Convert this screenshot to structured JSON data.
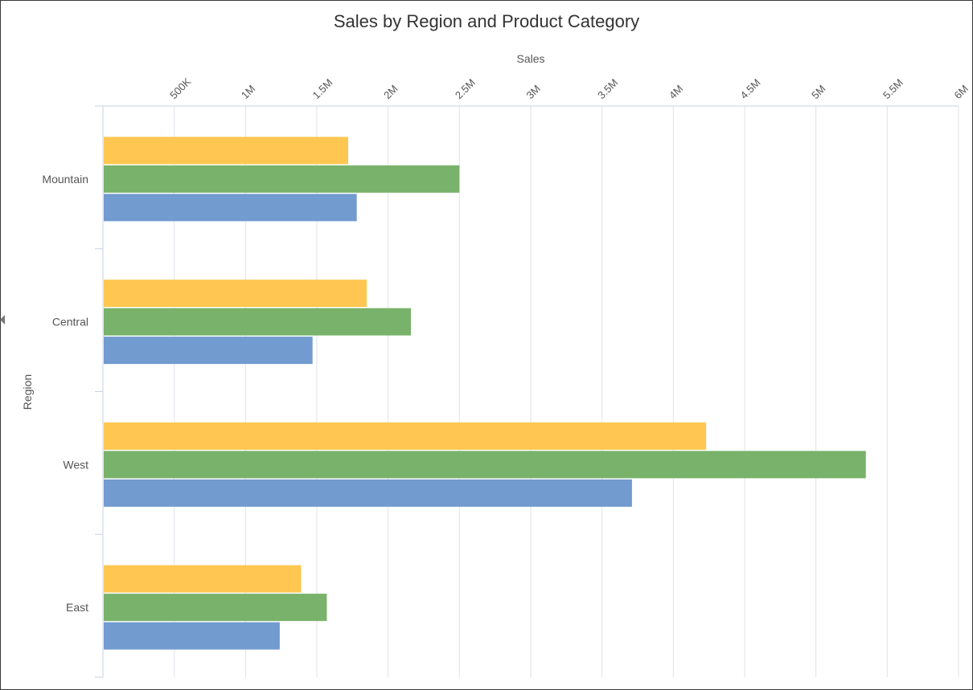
{
  "chart_data": {
    "type": "bar",
    "orientation": "horizontal",
    "title": "Sales by Region and Product Category",
    "xlabel": "Sales",
    "ylabel": "Region",
    "xlim": [
      0,
      6000000
    ],
    "x_ticks": [
      500000,
      1000000,
      1500000,
      2000000,
      2500000,
      3000000,
      3500000,
      4000000,
      4500000,
      5000000,
      5500000,
      6000000
    ],
    "x_tick_labels": [
      "500K",
      "1M",
      "1.5M",
      "2M",
      "2.5M",
      "3M",
      "3.5M",
      "4M",
      "4.5M",
      "5M",
      "5.5M",
      "6M"
    ],
    "x_axis_position": "top",
    "grid": true,
    "legend": "none",
    "categories": [
      "Mountain",
      "Central",
      "West",
      "East"
    ],
    "series": [
      {
        "color": "#FFC751",
        "values": [
          1720000,
          1850000,
          4230000,
          1390000
        ]
      },
      {
        "color": "#79B26A",
        "values": [
          2500000,
          2160000,
          5350000,
          1570000
        ]
      },
      {
        "color": "#729BCF",
        "values": [
          1780000,
          1470000,
          3710000,
          1240000
        ]
      }
    ]
  },
  "colors": {
    "gridline": "#dde3ea",
    "axis": "#c9d3e2",
    "text": "#555555",
    "title": "#333333"
  }
}
